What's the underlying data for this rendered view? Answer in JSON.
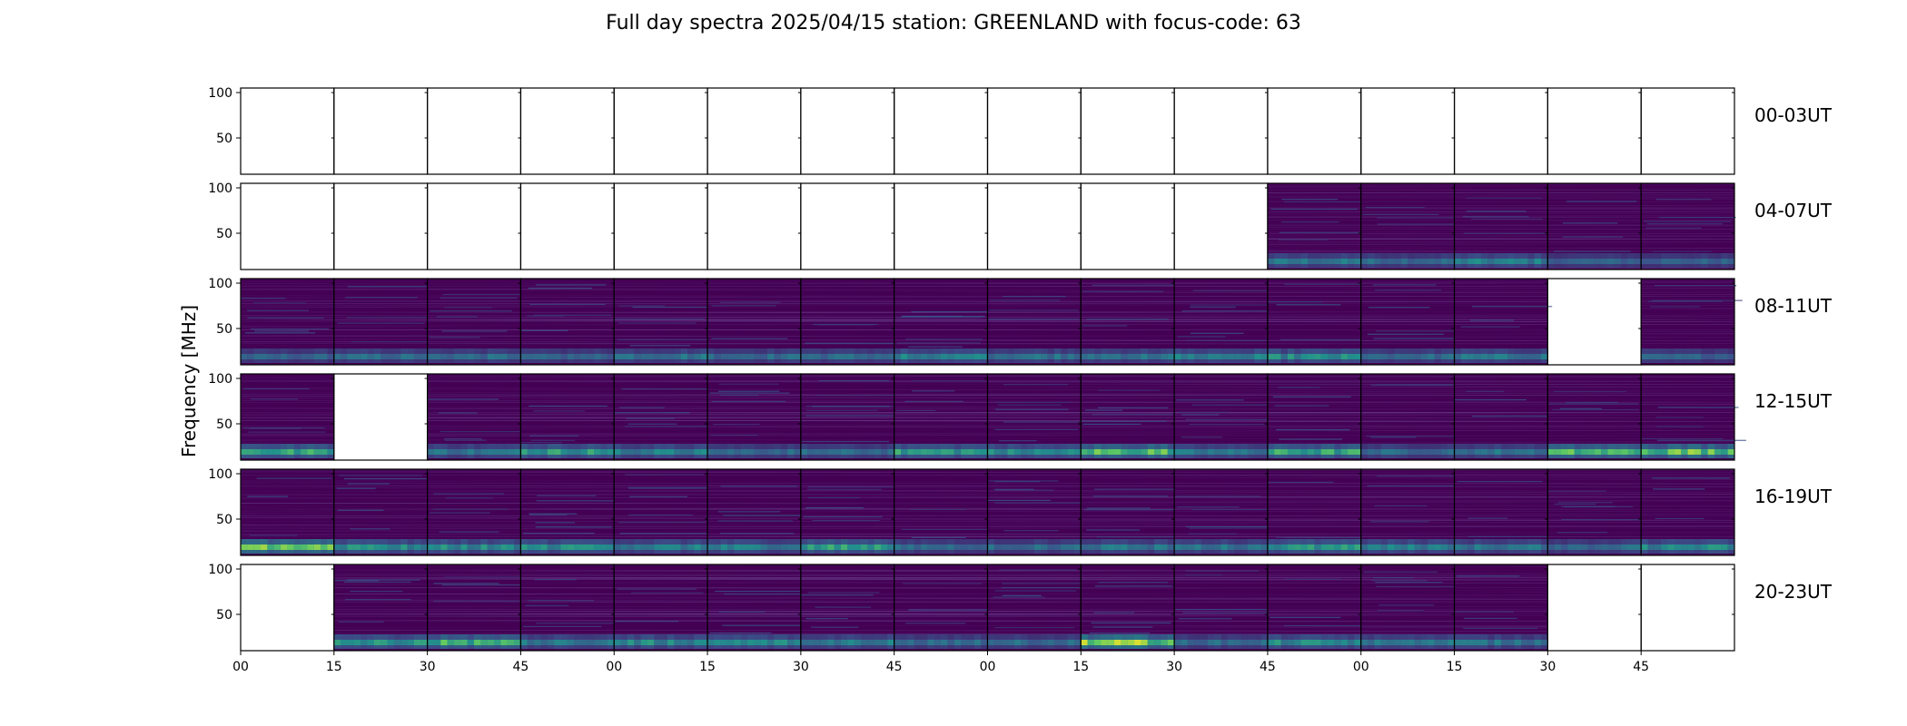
{
  "chart_data": {
    "type": "heatmap",
    "title": "Full day spectra 2025/04/15 station: GREENLAND with focus-code: 63",
    "ylabel": "Frequency [MHz]",
    "xlabel": "",
    "ylim": [
      10,
      105
    ],
    "yticks": [
      50,
      100
    ],
    "xticks": [
      "00",
      "15",
      "30",
      "45",
      "00",
      "15",
      "30",
      "45",
      "00",
      "15",
      "30",
      "45",
      "00",
      "15",
      "30",
      "45"
    ],
    "colormap": "viridis",
    "colors": {
      "background": "#440154",
      "bright": "#fde725",
      "mid": "#21918c"
    },
    "panel_minutes": 15,
    "rows": [
      {
        "label": "00-03UT",
        "panels": [
          0,
          0,
          0,
          0,
          0,
          0,
          0,
          0,
          0,
          0,
          0,
          0,
          0,
          0,
          0,
          0
        ],
        "band_level": [
          0,
          0,
          0,
          0,
          0,
          0,
          0,
          0,
          0,
          0,
          0,
          0,
          0,
          0,
          0,
          0
        ]
      },
      {
        "label": "04-07UT",
        "panels": [
          0,
          0,
          0,
          0,
          0,
          0,
          0,
          0,
          0,
          0,
          0,
          1,
          1,
          1,
          1,
          1
        ],
        "band_level": [
          0,
          0,
          0,
          0,
          0,
          0,
          0,
          0,
          0,
          0,
          0,
          0.35,
          0.3,
          0.4,
          0.25,
          0.25
        ]
      },
      {
        "label": "08-11UT",
        "panels": [
          1,
          1,
          1,
          1,
          1,
          1,
          1,
          1,
          1,
          1,
          1,
          1,
          1,
          1,
          0,
          1
        ],
        "band_level": [
          0.25,
          0.3,
          0.3,
          0.25,
          0.35,
          0.3,
          0.3,
          0.4,
          0.35,
          0.35,
          0.4,
          0.45,
          0.3,
          0.35,
          0,
          0.25
        ]
      },
      {
        "label": "12-15UT",
        "panels": [
          1,
          0,
          1,
          1,
          1,
          1,
          1,
          1,
          1,
          1,
          1,
          1,
          1,
          1,
          1,
          1
        ],
        "band_level": [
          0.6,
          0,
          0.35,
          0.55,
          0.4,
          0.3,
          0.3,
          0.55,
          0.45,
          0.75,
          0.35,
          0.6,
          0.3,
          0.35,
          0.7,
          0.8
        ]
      },
      {
        "label": "16-19UT",
        "panels": [
          1,
          1,
          1,
          1,
          1,
          1,
          1,
          1,
          1,
          1,
          1,
          1,
          1,
          1,
          1,
          1
        ],
        "band_level": [
          0.95,
          0.45,
          0.45,
          0.5,
          0.4,
          0.4,
          0.55,
          0.3,
          0.3,
          0.35,
          0.35,
          0.5,
          0.4,
          0.35,
          0.3,
          0.45
        ]
      },
      {
        "label": "20-23UT",
        "panels": [
          0,
          1,
          1,
          1,
          1,
          1,
          1,
          1,
          1,
          1,
          1,
          1,
          1,
          1,
          0,
          0
        ],
        "band_level": [
          0,
          0.5,
          0.7,
          0.35,
          0.45,
          0.45,
          0.4,
          0.3,
          0.3,
          0.85,
          0.3,
          0.45,
          0.35,
          0.35,
          0,
          0
        ]
      }
    ]
  }
}
